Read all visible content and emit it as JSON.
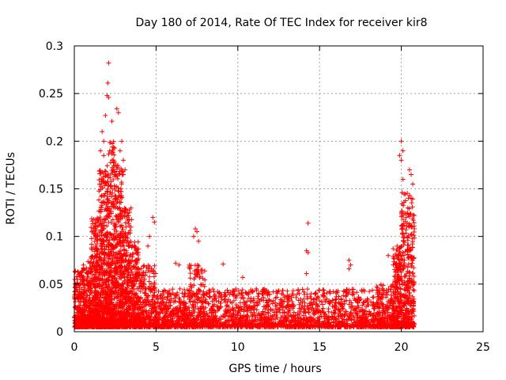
{
  "chart_data": {
    "type": "scatter",
    "title": "Day 180 of 2014, Rate Of TEC Index for receiver kir8",
    "xlabel": "GPS time / hours",
    "ylabel": "ROTI / TECUs",
    "xlim": [
      0,
      25
    ],
    "ylim": [
      0,
      0.3
    ],
    "x_ticks": [
      0,
      5,
      10,
      15,
      20,
      25
    ],
    "x_tick_labels": [
      "0",
      "5",
      "10",
      "15",
      "20",
      "25"
    ],
    "y_ticks": [
      0,
      0.05,
      0.1,
      0.15,
      0.2,
      0.25,
      0.3
    ],
    "y_tick_labels": [
      "0",
      "0.05",
      "0.1",
      "0.15",
      "0.2",
      "0.25",
      "0.3"
    ],
    "grid": true,
    "marker": "+",
    "marker_color": "#ff0000",
    "grid_color": "#a0a0a0",
    "series": [
      {
        "name": "ROTI",
        "bands": [
          {
            "x": [
              0.0,
              0.5
            ],
            "y": [
              0.005,
              0.065
            ],
            "count": 220
          },
          {
            "x": [
              0.5,
              1.0
            ],
            "y": [
              0.005,
              0.075
            ],
            "count": 220
          },
          {
            "x": [
              1.0,
              1.5
            ],
            "y": [
              0.005,
              0.12
            ],
            "count": 320
          },
          {
            "x": [
              1.5,
              2.0
            ],
            "y": [
              0.005,
              0.17
            ],
            "count": 380
          },
          {
            "x": [
              2.0,
              2.5
            ],
            "y": [
              0.005,
              0.2
            ],
            "count": 420
          },
          {
            "x": [
              2.5,
              3.0
            ],
            "y": [
              0.005,
              0.175
            ],
            "count": 380
          },
          {
            "x": [
              3.0,
              3.5
            ],
            "y": [
              0.005,
              0.13
            ],
            "count": 300
          },
          {
            "x": [
              3.5,
              4.0
            ],
            "y": [
              0.005,
              0.095
            ],
            "count": 220
          },
          {
            "x": [
              4.0,
              5.0
            ],
            "y": [
              0.005,
              0.07
            ],
            "count": 260
          },
          {
            "x": [
              5.0,
              7.0
            ],
            "y": [
              0.005,
              0.045
            ],
            "count": 380
          },
          {
            "x": [
              7.0,
              8.0
            ],
            "y": [
              0.005,
              0.07
            ],
            "count": 220
          },
          {
            "x": [
              8.0,
              18.5
            ],
            "y": [
              0.005,
              0.045
            ],
            "count": 1500
          },
          {
            "x": [
              18.5,
              19.5
            ],
            "y": [
              0.005,
              0.05
            ],
            "count": 220
          },
          {
            "x": [
              19.5,
              20.0
            ],
            "y": [
              0.005,
              0.09
            ],
            "count": 240
          },
          {
            "x": [
              20.0,
              20.8
            ],
            "y": [
              0.005,
              0.15
            ],
            "count": 360
          }
        ],
        "extra_points": [
          [
            2.1,
            0.282
          ],
          [
            2.05,
            0.261
          ],
          [
            2.0,
            0.248
          ],
          [
            2.1,
            0.246
          ],
          [
            1.9,
            0.227
          ],
          [
            2.6,
            0.234
          ],
          [
            2.7,
            0.23
          ],
          [
            2.3,
            0.221
          ],
          [
            1.7,
            0.21
          ],
          [
            1.8,
            0.2
          ],
          [
            2.9,
            0.2
          ],
          [
            2.8,
            0.19
          ],
          [
            3.0,
            0.18
          ],
          [
            2.4,
            0.18
          ],
          [
            1.6,
            0.19
          ],
          [
            1.8,
            0.185
          ],
          [
            3.1,
            0.17
          ],
          [
            2.5,
            0.165
          ],
          [
            4.8,
            0.12
          ],
          [
            4.9,
            0.115
          ],
          [
            4.6,
            0.1
          ],
          [
            4.5,
            0.09
          ],
          [
            7.4,
            0.108
          ],
          [
            7.5,
            0.105
          ],
          [
            7.3,
            0.1
          ],
          [
            7.6,
            0.095
          ],
          [
            6.2,
            0.072
          ],
          [
            6.4,
            0.07
          ],
          [
            9.1,
            0.071
          ],
          [
            10.3,
            0.057
          ],
          [
            14.3,
            0.114
          ],
          [
            14.2,
            0.085
          ],
          [
            14.3,
            0.083
          ],
          [
            14.2,
            0.061
          ],
          [
            16.8,
            0.075
          ],
          [
            16.9,
            0.07
          ],
          [
            16.8,
            0.066
          ],
          [
            19.5,
            0.079
          ],
          [
            19.2,
            0.08
          ],
          [
            20.0,
            0.2
          ],
          [
            20.1,
            0.19
          ],
          [
            19.9,
            0.185
          ],
          [
            20.0,
            0.18
          ],
          [
            20.1,
            0.16
          ],
          [
            20.6,
            0.165
          ],
          [
            20.5,
            0.17
          ],
          [
            20.7,
            0.155
          ],
          [
            20.6,
            0.14
          ],
          [
            20.4,
            0.13
          ],
          [
            20.3,
            0.12
          ],
          [
            20.5,
            0.11
          ]
        ]
      }
    ]
  }
}
